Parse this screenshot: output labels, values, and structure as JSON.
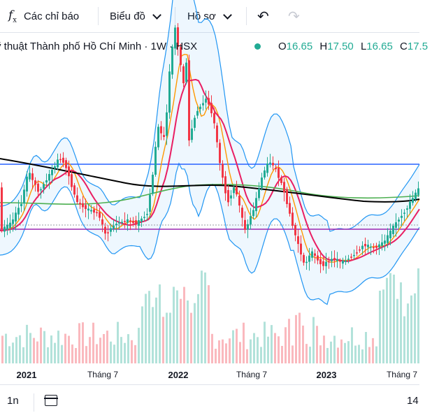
{
  "toolbar": {
    "indicators_label": "Các chỉ báo",
    "chart_type_label": "Biểu đồ",
    "profile_label": "Hồ sơ",
    "fx_icon": "f",
    "fx_sub": "x",
    "undo_icon": "↶",
    "redo_icon": "↷"
  },
  "legend": {
    "symbol_title": "ỹ thuật Thành phố Hồ Chí Minh · 1W · HSX",
    "status_color": "#22ab94",
    "open_key": "O",
    "open_val": "16.65",
    "high_key": "H",
    "high_val": "17.50",
    "low_key": "L",
    "low_val": "16.65",
    "close_key": "C",
    "close_val": "17.5"
  },
  "x_axis": {
    "ticks": [
      {
        "label": "2021",
        "major": true
      },
      {
        "label": "Tháng 7",
        "major": false
      },
      {
        "label": "2022",
        "major": true
      },
      {
        "label": "Tháng 7",
        "major": false
      },
      {
        "label": "2023",
        "major": true
      },
      {
        "label": "Tháng 7",
        "major": false
      }
    ]
  },
  "bottom": {
    "timeframe": "1n",
    "time_partial": "14"
  },
  "colors": {
    "up": "#22ab94",
    "down": "#f23645",
    "bb": "#2196f3",
    "ma_black": "#000000",
    "ma_green": "#4caf50",
    "ma_red": "#e91e63",
    "ma_orange": "#ff9800",
    "hline_blue": "#2962ff",
    "hline_purple": "#9c27b0"
  },
  "chart_data": {
    "type": "candlestick",
    "price_points": [
      [
        0,
        330
      ],
      [
        15,
        320
      ],
      [
        30,
        290
      ],
      [
        40,
        245
      ],
      [
        55,
        275
      ],
      [
        70,
        250
      ],
      [
        85,
        225
      ],
      [
        95,
        240
      ],
      [
        100,
        260
      ],
      [
        110,
        290
      ],
      [
        125,
        300
      ],
      [
        140,
        305
      ],
      [
        150,
        335
      ],
      [
        165,
        320
      ],
      [
        180,
        315
      ],
      [
        195,
        320
      ],
      [
        210,
        305
      ],
      [
        218,
        250
      ],
      [
        225,
        180
      ],
      [
        235,
        200
      ],
      [
        243,
        90
      ],
      [
        250,
        40
      ],
      [
        262,
        120
      ],
      [
        265,
        60
      ],
      [
        270,
        200
      ],
      [
        280,
        160
      ],
      [
        295,
        140
      ],
      [
        305,
        170
      ],
      [
        315,
        240
      ],
      [
        325,
        290
      ],
      [
        335,
        265
      ],
      [
        350,
        330
      ],
      [
        362,
        300
      ],
      [
        375,
        250
      ],
      [
        385,
        230
      ],
      [
        395,
        245
      ],
      [
        405,
        270
      ],
      [
        420,
        330
      ],
      [
        435,
        380
      ],
      [
        445,
        360
      ],
      [
        460,
        380
      ],
      [
        475,
        370
      ],
      [
        490,
        375
      ],
      [
        505,
        365
      ],
      [
        520,
        350
      ],
      [
        535,
        355
      ],
      [
        550,
        345
      ],
      [
        565,
        320
      ],
      [
        580,
        300
      ],
      [
        595,
        275
      ],
      [
        600,
        268
      ]
    ]
  }
}
